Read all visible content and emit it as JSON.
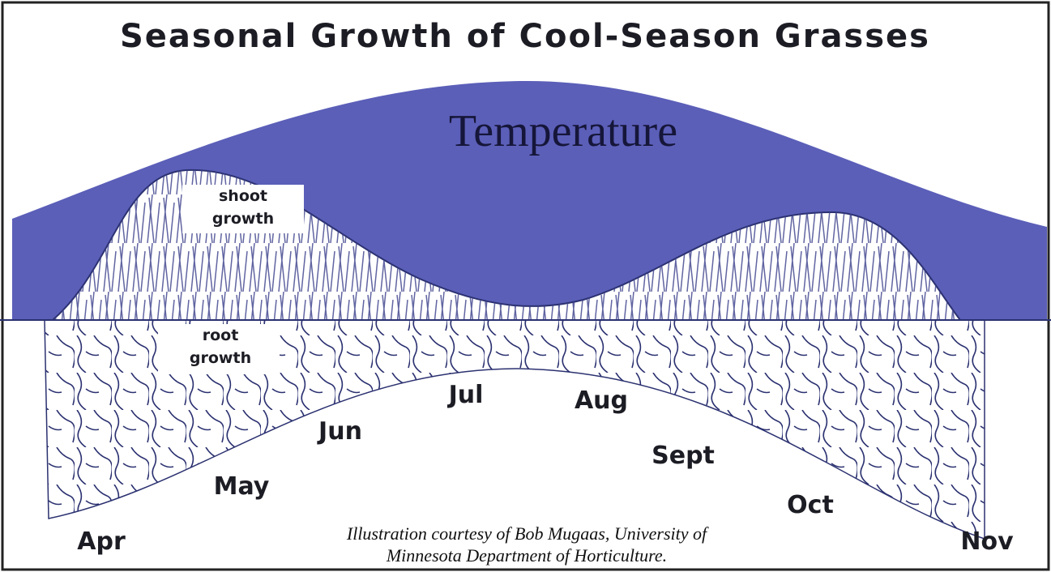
{
  "title": "Seasonal Growth of Cool-Season Grasses",
  "temperature_label": "Temperature",
  "shoot_label": [
    "shoot",
    "growth"
  ],
  "root_label": [
    "root",
    "growth"
  ],
  "months": [
    "Apr",
    "May",
    "Jun",
    "Jul",
    "Aug",
    "Sept",
    "Oct",
    "Nov"
  ],
  "caption": [
    "Illustration courtesy of Bob Mugaas, University of",
    "Minnesota Department of Horticulture."
  ]
}
